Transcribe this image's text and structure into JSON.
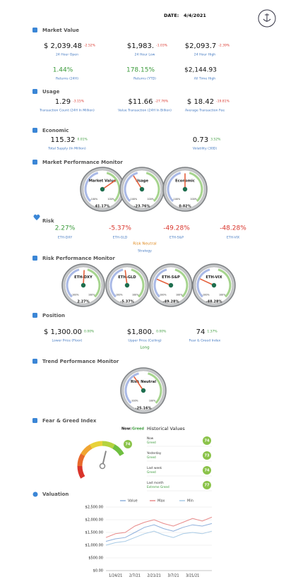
{
  "header": {
    "date_label": "DATE:",
    "date": "4/4/2021"
  },
  "market_value": {
    "title": "Market Value",
    "row1": [
      {
        "value": "$  2,039.48",
        "change": "-2.52%",
        "label": "24 Hour Open"
      },
      {
        "value": "$1,983.",
        "change": "-1.03%",
        "label": "24 Hour Low"
      },
      {
        "value": "$2,093.7",
        "change": "-2.39%",
        "label": "24 Hour High"
      }
    ],
    "row2": [
      {
        "value": "1.44%",
        "label": "Returns (24H)"
      },
      {
        "value": "178.15%",
        "label": "Returns (YTD)"
      },
      {
        "value": "$2,144.93",
        "label": "All Time High"
      }
    ]
  },
  "usage": {
    "title": "Usage",
    "items": [
      {
        "value": "1.29",
        "change": "-3.15%",
        "label": "Transaction Count (24H In Million)"
      },
      {
        "value": "$11.66",
        "change": "-27.76%",
        "label": "Value Transaction (24H In Billion)"
      },
      {
        "value": "$ 18.42",
        "change": "-19.81%",
        "label": "Average Transaction Fee"
      }
    ]
  },
  "economic": {
    "title": "Economic",
    "items": [
      {
        "value": "115.32",
        "change": "0.01%",
        "label": "Total Supply (In Million)"
      },
      {
        "value": "0.73",
        "change": "3.52%",
        "label": "Volatility (30D)"
      }
    ]
  },
  "gauge_scale": {
    "range": [
      -100,
      100
    ],
    "min_label": "-100%",
    "max_label": "100%"
  },
  "market_performance": {
    "title": "Market Performance Monitor",
    "gauges": [
      {
        "title": "Market Value",
        "value": 41.17,
        "value_label": "41.17%"
      },
      {
        "title": "Usage",
        "value": -23.76,
        "value_label": "-23.76%"
      },
      {
        "title": "Economic",
        "value": 0.02,
        "value_label": "0.02%"
      }
    ]
  },
  "risk": {
    "title": "Risk",
    "items": [
      {
        "value": "2.27%",
        "label": "ETH-DXY"
      },
      {
        "value": "-5.37%",
        "label": "ETH-GLD"
      },
      {
        "value": "-49.28%",
        "label": "ETH-S&P"
      },
      {
        "value": "-48.28%",
        "label": "ETH-VIX"
      }
    ],
    "strategy_value": "Risk Neutral",
    "strategy_label": "Strategy"
  },
  "risk_performance": {
    "title": "Risk Performance Monitor",
    "gauges": [
      {
        "title": "ETH-DXY",
        "value": 2.27,
        "value_label": "2.27%"
      },
      {
        "title": "ETH-GLD",
        "value": -5.37,
        "value_label": "-5.37%"
      },
      {
        "title": "ETH-S&P",
        "value": -49.28,
        "value_label": "-49.28%"
      },
      {
        "title": "ETH-VIX",
        "value": -48.28,
        "value_label": "-48.28%"
      }
    ]
  },
  "position": {
    "title": "Position",
    "items": [
      {
        "value": "$  1,300.00",
        "change": "0.00%",
        "label": "Lower Price (Floor)"
      },
      {
        "value": "$1,800.",
        "change": "0.00%",
        "label": "Upper Price (Ceiling)"
      },
      {
        "value": "74",
        "change": "1.37%",
        "label": "Fear & Greed Index"
      }
    ],
    "direction": "Long"
  },
  "trend_performance": {
    "title": "Trend Performance Monitor",
    "gauges": [
      {
        "title": "Risk Neutral",
        "value": -25.16,
        "value_label": "-25.16%"
      }
    ]
  },
  "fear_greed": {
    "title": "Fear & Greed Index",
    "range": [
      0,
      100
    ],
    "value": 74,
    "now_label": "Now:",
    "now_class": "Greed",
    "history_title": "Historical Values",
    "history": [
      {
        "period": "Now",
        "class": "Greed",
        "value": 74
      },
      {
        "period": "Yesterday",
        "class": "Greed",
        "value": 73
      },
      {
        "period": "Last week",
        "class": "Greed",
        "value": 74
      },
      {
        "period": "Last month",
        "class": "Extreme Greed",
        "value": 77
      }
    ]
  },
  "chart_data": {
    "type": "line",
    "title": "Valuation",
    "categories": [
      null,
      "1/24/21",
      null,
      "2/7/21",
      null,
      "2/21/21",
      null,
      "3/7/21",
      null,
      "3/21/21",
      null,
      null
    ],
    "series": [
      {
        "name": "Value",
        "color": "#8fb0dc",
        "values": [
          1150,
          1250,
          1300,
          1500,
          1700,
          1800,
          1650,
          1550,
          1700,
          1800,
          1750,
          1850
        ]
      },
      {
        "name": "Max",
        "color": "#e88a8a",
        "values": [
          1300,
          1450,
          1500,
          1750,
          1900,
          2000,
          1850,
          1750,
          1900,
          2050,
          1950,
          2100
        ]
      },
      {
        "name": "Min",
        "color": "#a9cbe6",
        "values": [
          1000,
          1100,
          1150,
          1300,
          1450,
          1550,
          1400,
          1300,
          1450,
          1500,
          1450,
          1550
        ]
      }
    ],
    "ylim": [
      0,
      2500
    ],
    "yticks": [
      {
        "value": 0,
        "label": "$0.00"
      },
      {
        "value": 500,
        "label": "$500.00"
      },
      {
        "value": 1000,
        "label": "$1,000.00"
      },
      {
        "value": 1500,
        "label": "$1,500.00"
      },
      {
        "value": 2000,
        "label": "$2,000.00"
      },
      {
        "value": 2500,
        "label": "$2,500.00"
      }
    ],
    "grid": true
  }
}
